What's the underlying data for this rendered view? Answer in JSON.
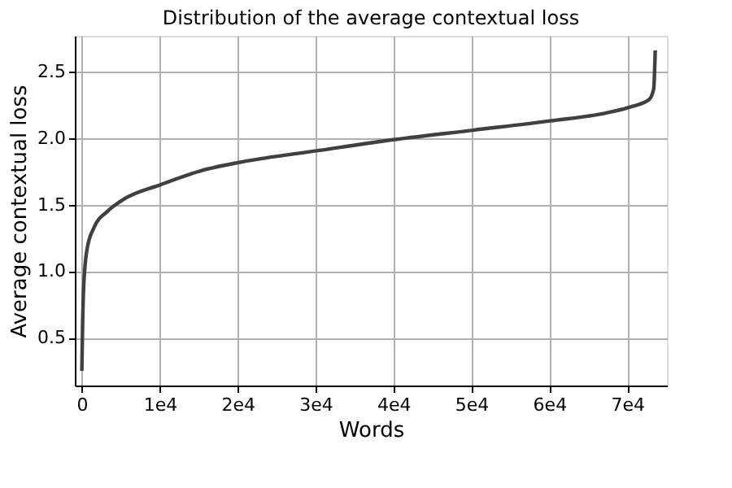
{
  "chart_data": {
    "type": "line",
    "title": "Distribution of the average contextual loss",
    "xlabel": "Words",
    "ylabel": "Average contextual loss",
    "x": [
      0,
      100,
      250,
      680,
      1580,
      3290,
      5340,
      10100,
      15600,
      20400,
      30700,
      40200,
      50200,
      60100,
      67300,
      70700,
      72800,
      73400,
      73600
    ],
    "series": [
      {
        "color": "#404040",
        "values": [
          0.25,
          0.6,
          0.9,
          1.17,
          1.33,
          1.45,
          1.54,
          1.65,
          1.76,
          1.82,
          1.91,
          1.99,
          2.06,
          2.13,
          2.19,
          2.24,
          2.29,
          2.37,
          2.66
        ]
      }
    ],
    "xlim": [
      -900,
      75100
    ],
    "ylim": [
      0.14,
      2.77
    ],
    "xticks": [
      0,
      {
        "value": 10000,
        "label": "1e4"
      },
      {
        "value": 20000,
        "label": "2e4"
      },
      {
        "value": 30000,
        "label": "3e4"
      },
      {
        "value": 40000,
        "label": "4e4"
      },
      {
        "value": 50000,
        "label": "5e4"
      },
      {
        "value": 60000,
        "label": "6e4"
      },
      {
        "value": 70000,
        "label": "7e4"
      }
    ],
    "yticks": [
      0.5,
      {
        "value": 1,
        "label": "1.0"
      },
      1.5,
      {
        "value": 2,
        "label": "2.0"
      },
      2.5
    ],
    "grid": true,
    "line_style": "solid",
    "marker": "none"
  }
}
